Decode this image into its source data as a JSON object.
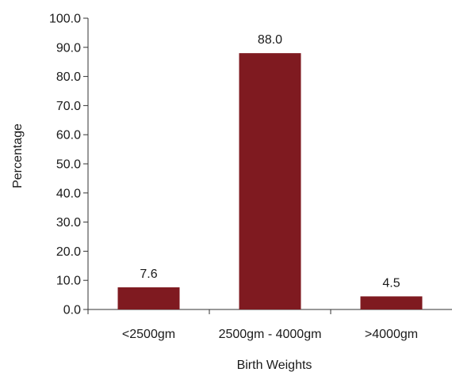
{
  "chart_data": {
    "type": "bar",
    "title": "",
    "xlabel": "Birth Weights",
    "ylabel": "Percentage",
    "categories": [
      "<2500gm",
      "2500gm - 4000gm",
      ">4000gm"
    ],
    "values": [
      7.6,
      88.0,
      4.5
    ],
    "data_labels": [
      "7.6",
      "88.0",
      "4.5"
    ],
    "ylim": [
      0,
      100
    ],
    "yticks": [
      "0.0",
      "10.0",
      "20.0",
      "30.0",
      "40.0",
      "50.0",
      "60.0",
      "70.0",
      "80.0",
      "90.0",
      "100.0"
    ],
    "grid": false,
    "legend": "none",
    "bar_color": "#7f1a20"
  }
}
